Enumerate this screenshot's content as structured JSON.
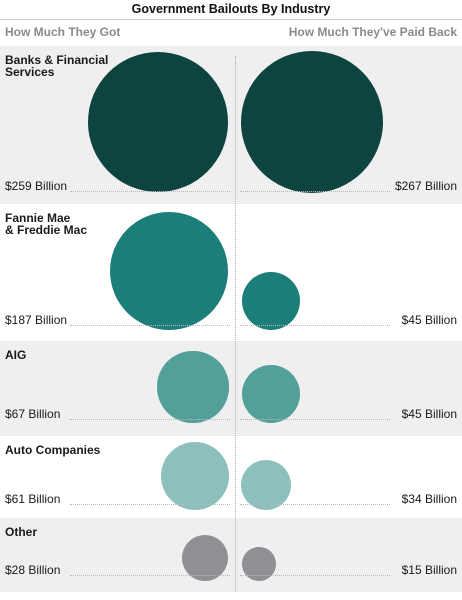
{
  "chart_data": {
    "type": "bubble",
    "title": "Government Bailouts By Industry",
    "column_headers": {
      "left": "How Much They Got",
      "right": "How Much They've Paid Back"
    },
    "unit": "Billion",
    "categories": [
      {
        "name": "Banks & Financial\nServices",
        "got": 259,
        "paid_back": 267,
        "got_label": "$259 Billion",
        "paid_label": "$267 Billion",
        "color": "#0e4440"
      },
      {
        "name": "Fannie Mae\n& Freddie Mac",
        "got": 187,
        "paid_back": 45,
        "got_label": "$187 Billion",
        "paid_label": "$45 Billion",
        "color": "#1b7e79"
      },
      {
        "name": "AIG",
        "got": 67,
        "paid_back": 45,
        "got_label": "$67 Billion",
        "paid_label": "$45 Billion",
        "color": "#539f9a"
      },
      {
        "name": "Auto Companies",
        "got": 61,
        "paid_back": 34,
        "got_label": "$61 Billion",
        "paid_label": "$34 Billion",
        "color": "#8dc0bd"
      },
      {
        "name": "Other",
        "got": 28,
        "paid_back": 15,
        "got_label": "$28 Billion",
        "paid_label": "$15 Billion",
        "color": "#8f9093"
      }
    ]
  }
}
